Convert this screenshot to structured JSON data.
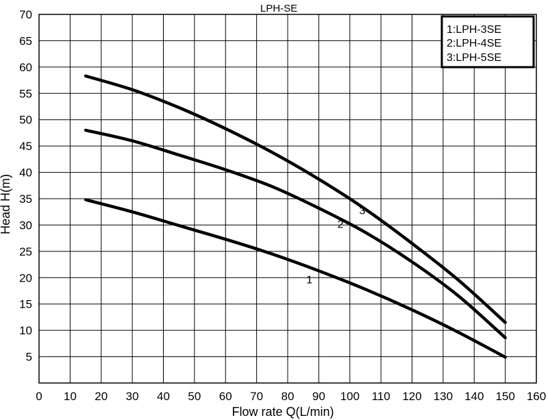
{
  "chart_data": {
    "type": "line",
    "title": "LPH-SE",
    "xlabel": "Flow rate Q(L/min)",
    "ylabel": "Head H(m)",
    "xlim": [
      0,
      160
    ],
    "ylim": [
      0,
      70
    ],
    "xticks": [
      0,
      10,
      20,
      30,
      40,
      50,
      60,
      70,
      80,
      90,
      100,
      110,
      120,
      130,
      140,
      150,
      160
    ],
    "yticks": [
      5,
      10,
      15,
      20,
      25,
      30,
      35,
      40,
      45,
      50,
      55,
      60,
      65,
      70
    ],
    "grid": true,
    "legend": {
      "position": "top-right",
      "entries": [
        "1:LPH-3SE",
        "2:LPH-4SE",
        "3:LPH-5SE"
      ]
    },
    "series": [
      {
        "label": "1",
        "x": [
          15,
          30,
          45,
          60,
          75,
          90,
          105,
          120,
          135,
          150
        ],
        "y": [
          34.8,
          32.5,
          29.9,
          27.3,
          24.5,
          21.3,
          17.8,
          13.9,
          9.6,
          4.9
        ]
      },
      {
        "label": "2",
        "x": [
          15,
          30,
          45,
          60,
          75,
          90,
          105,
          120,
          135,
          150
        ],
        "y": [
          48.0,
          46.0,
          43.3,
          40.5,
          37.3,
          33.2,
          28.6,
          23.0,
          16.5,
          8.6
        ]
      },
      {
        "label": "3",
        "x": [
          15,
          30,
          45,
          60,
          75,
          90,
          105,
          120,
          135,
          150
        ],
        "y": [
          58.3,
          55.7,
          52.3,
          48.3,
          43.8,
          38.7,
          33.0,
          26.5,
          19.5,
          11.5
        ]
      }
    ],
    "annotations": [
      {
        "text": "1",
        "x": 87,
        "y": 18.9
      },
      {
        "text": "2",
        "x": 97,
        "y": 29.5
      },
      {
        "text": "3",
        "x": 104,
        "y": 32.1
      }
    ]
  }
}
